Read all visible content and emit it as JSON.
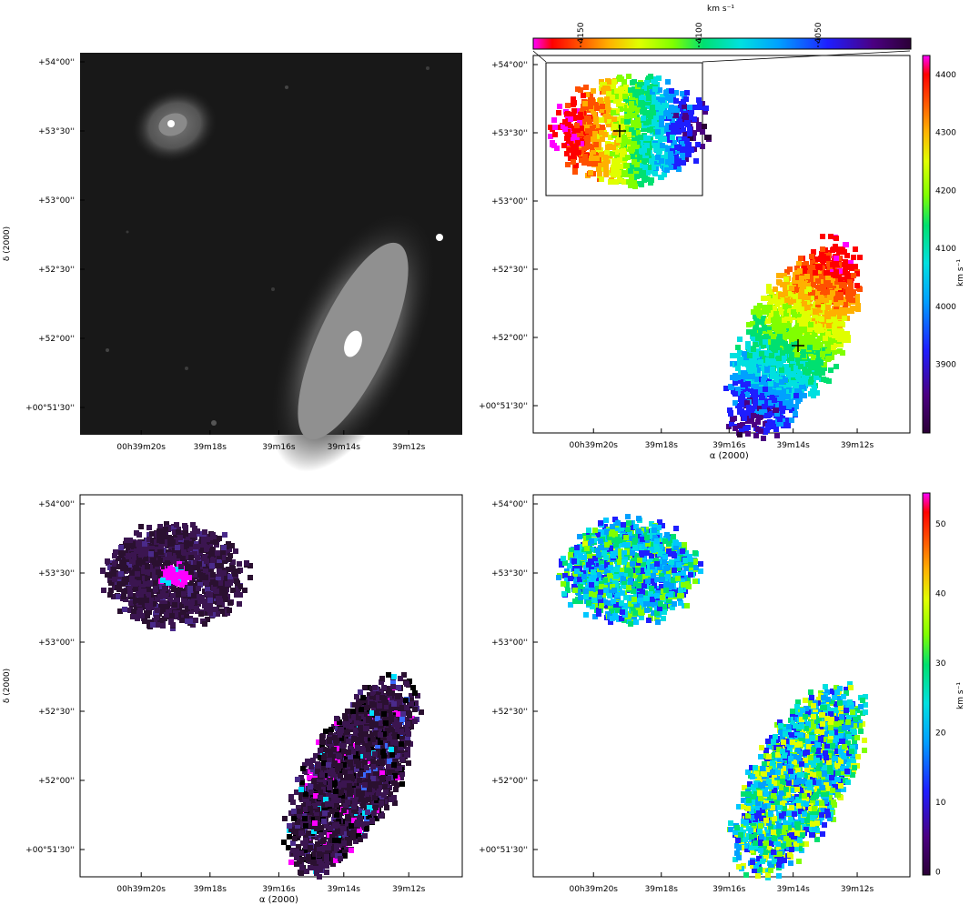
{
  "panels": {
    "top_left": {
      "name": "optical-image",
      "dec_ticks": [
        "+54°00''",
        "+53°30''",
        "+53°00''",
        "+52°30''",
        "+52°00''",
        "+00°51'30''"
      ],
      "ra_ticks": [
        "00h39m20s",
        "39m18s",
        "39m16s",
        "39m14s",
        "39m12s"
      ],
      "ylabel": "δ (2000)"
    },
    "top_right": {
      "name": "velocity-field",
      "dec_ticks": [
        "+54°00''",
        "+53°30''",
        "+53°00''",
        "+52°30''",
        "+52°00''",
        "+00°51'30''"
      ],
      "ra_ticks": [
        "00h39m20s",
        "39m18s",
        "39m16s",
        "39m14s",
        "39m12s"
      ],
      "xlabel": "α (2000)",
      "colorbar": {
        "unit": "km s⁻¹",
        "ticks": [
          "4400",
          "4300",
          "4200",
          "4100",
          "4000",
          "3900"
        ]
      },
      "inset_colorbar": {
        "unit": "km s⁻¹",
        "ticks": [
          "4150",
          "4100",
          "4050"
        ]
      }
    },
    "bottom_left": {
      "name": "intensity-map",
      "dec_ticks": [
        "+54°00''",
        "+53°30''",
        "+53°00''",
        "+52°30''",
        "+52°00''",
        "+00°51'30''"
      ],
      "ra_ticks": [
        "00h39m20s",
        "39m18s",
        "39m16s",
        "39m14s",
        "39m12s"
      ],
      "xlabel": "α (2000)",
      "ylabel": "δ (2000)"
    },
    "bottom_right": {
      "name": "dispersion-map",
      "dec_ticks": [
        "+54°00''",
        "+53°30''",
        "+53°00''",
        "+52°30''",
        "+52°00''",
        "+00°51'30''"
      ],
      "ra_ticks": [
        "00h39m20s",
        "39m18s",
        "39m16s",
        "39m14s",
        "39m12s"
      ],
      "colorbar": {
        "unit": "km s⁻¹",
        "ticks": [
          "50",
          "40",
          "30",
          "20",
          "10",
          "0"
        ]
      }
    }
  },
  "colors": {
    "rainbow": [
      "#2b0036",
      "#4b0082",
      "#1e1eff",
      "#00a0ff",
      "#00e0e0",
      "#00e070",
      "#80ff00",
      "#e0ff00",
      "#ffb000",
      "#ff5000",
      "#ff0000",
      "#ff00ff"
    ],
    "intensity": [
      "#000000",
      "#2a1030",
      "#3b1550",
      "#4a2a8a",
      "#3a6aff",
      "#00e0ff",
      "#ff00ff"
    ]
  }
}
